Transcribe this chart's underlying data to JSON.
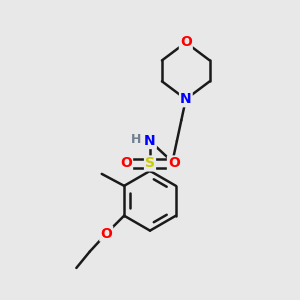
{
  "background_color": "#e8e8e8",
  "line_color": "#1a1a1a",
  "bond_width": 1.8,
  "atom_colors": {
    "O": "#ff0000",
    "N": "#0000ff",
    "S": "#cccc00",
    "H": "#708090",
    "C": "#1a1a1a"
  },
  "font_size": 10,
  "fig_size": [
    3.0,
    3.0
  ],
  "dpi": 100,
  "xlim": [
    0.0,
    1.0
  ],
  "ylim": [
    0.0,
    1.0
  ]
}
